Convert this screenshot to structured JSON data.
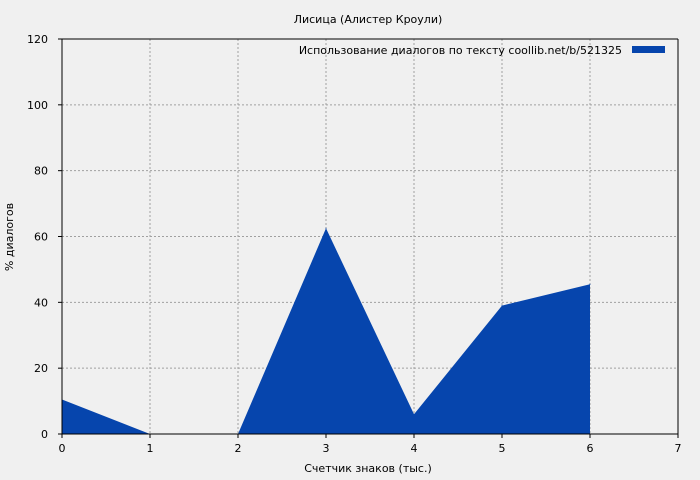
{
  "chart_data": {
    "type": "area",
    "title": "Лисица (Алистер Кроули)",
    "xlabel": "Счетчик знаков (тыс.)",
    "ylabel": "% диалогов",
    "xlim": [
      0,
      7
    ],
    "ylim": [
      0,
      120
    ],
    "x_ticks": [
      0,
      1,
      2,
      3,
      4,
      5,
      6,
      7
    ],
    "y_ticks": [
      0,
      20,
      40,
      60,
      80,
      100,
      120
    ],
    "grid": true,
    "legend_position": "top-right",
    "series": [
      {
        "name": "Использование диалогов по тексту  coollib.net/b/521325",
        "color": "#0645ad",
        "x": [
          0,
          1,
          2,
          3,
          4,
          5,
          6
        ],
        "y": [
          10.5,
          0,
          0,
          62.5,
          6,
          39,
          45.5
        ]
      }
    ]
  }
}
